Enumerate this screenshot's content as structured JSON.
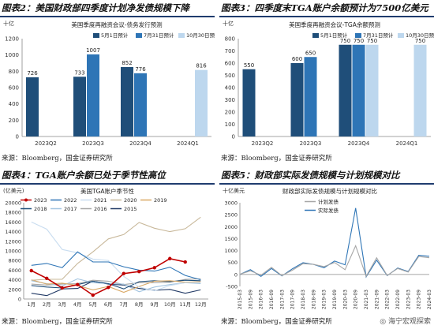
{
  "titles": {
    "p1": "图表2：美国财政部四季度计划净发债规模下降",
    "p2": "图表3：四季度末TGA账户余额预计为7500亿美元",
    "p3": "图表4：TGA账户余额已处于季节性高位",
    "p4": "图表5：财政部实际发债规模与计划规模对比"
  },
  "sources": {
    "p1": "来源：Bloomberg，国金证券研究所",
    "p2": "来源：Bloomberg，国金证券研究所",
    "p3": "来源：Bloomberg，国金证券研究所",
    "p4": "来源：Bloomberg，国金证券研究所"
  },
  "watermark": "海宁宏观探索",
  "colors": {
    "rule": "#1f3c6e",
    "dark": "#1f4e79",
    "mid": "#2e75b6",
    "light": "#bdd7ee",
    "red": "#c00000"
  },
  "chart_data": [
    {
      "type": "bar",
      "title": "美国季度再融资会议-债务发行预测",
      "unit": "十亿",
      "categories": [
        "2023Q2",
        "2023Q3",
        "2023Q4",
        "2024Q1"
      ],
      "ylim": [
        0,
        1200
      ],
      "yticks": [
        0,
        200,
        400,
        600,
        800,
        1000,
        1200
      ],
      "series": [
        {
          "name": "5月1日预计",
          "color": "#1f4e79",
          "values": [
            726,
            733,
            852,
            null
          ]
        },
        {
          "name": "7月31日预计",
          "color": "#2e75b6",
          "values": [
            null,
            1007,
            776,
            null
          ]
        },
        {
          "name": "10月30日预计",
          "color": "#bdd7ee",
          "values": [
            null,
            null,
            null,
            816
          ]
        }
      ]
    },
    {
      "type": "bar",
      "title": "美国季度再融资会议-TGA余额预测",
      "unit": "十亿",
      "categories": [
        "2023Q2",
        "2023Q3",
        "2023Q4",
        "2024Q1"
      ],
      "ylim": [
        0,
        800
      ],
      "yticks": [
        0,
        100,
        200,
        300,
        400,
        500,
        600,
        700,
        800
      ],
      "series": [
        {
          "name": "5月1日预计",
          "color": "#1f4e79",
          "values": [
            550,
            600,
            750,
            null
          ]
        },
        {
          "name": "7月31日预计",
          "color": "#2e75b6",
          "values": [
            null,
            650,
            750,
            null
          ]
        },
        {
          "name": "10月30日预计",
          "color": "#bdd7ee",
          "values": [
            null,
            null,
            750,
            750
          ]
        }
      ]
    },
    {
      "type": "line",
      "title": "美国TGA账户季节性",
      "unit": "(亿美元)",
      "categories": [
        "1月",
        "2月",
        "3月",
        "4月",
        "5月",
        "6月",
        "7月",
        "8月",
        "9月",
        "10月",
        "11月",
        "12月"
      ],
      "ylim": [
        0,
        20000
      ],
      "yticks": [
        0,
        2000,
        4000,
        6000,
        8000,
        10000,
        12000,
        14000,
        16000,
        18000,
        20000
      ],
      "series": [
        {
          "name": "2023",
          "color": "#c00000",
          "values": [
            5900,
            4300,
            2300,
            3000,
            800,
            2400,
            5300,
            5700,
            6500,
            8400,
            7700,
            null
          ]
        },
        {
          "name": "2022",
          "color": "#2e75b6",
          "values": [
            7000,
            7400,
            6500,
            9800,
            7700,
            7700,
            6700,
            6000,
            5800,
            6600,
            4900,
            4000
          ]
        },
        {
          "name": "2021",
          "color": "#c9ddf0",
          "values": [
            16000,
            14500,
            10300,
            9600,
            8300,
            8000,
            4700,
            2500,
            1700,
            2800,
            3400,
            3400
          ]
        },
        {
          "name": "2020",
          "color": "#c8b89a",
          "values": [
            3900,
            4100,
            4100,
            7400,
            9800,
            12500,
            13400,
            15900,
            14700,
            14000,
            14600,
            17000
          ]
        },
        {
          "name": "2019",
          "color": "#d9a865",
          "values": [
            4000,
            3100,
            3300,
            2800,
            1900,
            2600,
            1400,
            2600,
            3700,
            3800,
            3500,
            3600
          ]
        },
        {
          "name": "2018",
          "color": "#1f4e79",
          "values": [
            2800,
            2500,
            2300,
            3000,
            3700,
            3200,
            2100,
            3600,
            3800,
            3600,
            3900,
            3800
          ]
        },
        {
          "name": "2017",
          "color": "#a3c4e0",
          "values": [
            3800,
            3200,
            2700,
            4200,
            3400,
            3200,
            3100,
            1500,
            2500,
            3000,
            3400,
            3200
          ]
        },
        {
          "name": "2016",
          "color": "#a6a6a6",
          "values": [
            3100,
            2900,
            3100,
            3200,
            3900,
            3700,
            3000,
            3400,
            3400,
            3500,
            4100,
            4200
          ]
        },
        {
          "name": "2015",
          "color": "#203864",
          "values": [
            1200,
            700,
            2100,
            2200,
            3700,
            3100,
            2900,
            2200,
            1800,
            2000,
            1200,
            1900
          ]
        }
      ]
    },
    {
      "type": "line",
      "title": "财政部实际发债规模与计划规模对比",
      "unit": "十亿美元",
      "x": [
        "2015-03",
        "2015-09",
        "2016-03",
        "2016-09",
        "2017-03",
        "2017-09",
        "2018-03",
        "2018-09",
        "2019-03",
        "2019-09",
        "2020-03",
        "2020-09",
        "2021-03",
        "2021-09",
        "2022-03",
        "2022-09",
        "2023-03",
        "2023-09",
        "2024-03"
      ],
      "ylim": [
        -500,
        3000
      ],
      "yticks": [
        -500,
        0,
        500,
        1000,
        1500,
        2000,
        2500,
        3000
      ],
      "series": [
        {
          "name": "计划发债",
          "color": "#a6a6a6",
          "values": [
            10,
            150,
            -30,
            300,
            -50,
            180,
            450,
            420,
            330,
            500,
            200,
            1200,
            -80,
            700,
            -40,
            250,
            100,
            750,
            700
          ]
        },
        {
          "name": "实际发债",
          "color": "#2e75b6",
          "values": [
            0,
            200,
            -80,
            250,
            -60,
            240,
            490,
            420,
            280,
            560,
            400,
            2780,
            -100,
            600,
            -50,
            270,
            120,
            800,
            760
          ]
        }
      ]
    }
  ]
}
